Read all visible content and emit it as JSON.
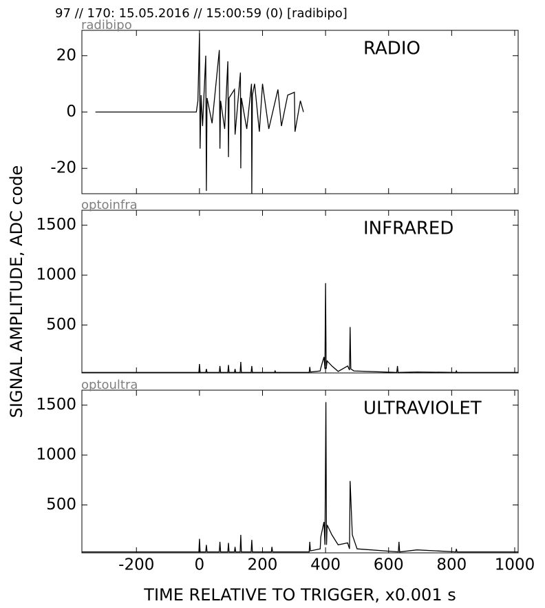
{
  "title": "97 // 170:   15.05.2016 // 15:00:59 (0)  [radibipo]",
  "xlabel": "TIME RELATIVE TO TRIGGER,   x0.001 s",
  "ylabel": "SIGNAL AMPLITUDE,  ADC code",
  "chart_data": [
    {
      "type": "line",
      "label": "radibipo",
      "annotation": "RADIO",
      "color": "#000000",
      "xlim": [
        -373,
        1011
      ],
      "xticks": [
        -200,
        0,
        200,
        400,
        600,
        800,
        1000
      ],
      "ylim": [
        -29,
        29
      ],
      "yticks": [
        -20,
        0,
        20
      ],
      "x": [
        -330,
        -10,
        -5,
        0,
        2,
        5,
        10,
        20,
        22,
        24,
        40,
        63,
        65,
        67,
        80,
        90,
        92,
        94,
        111,
        113,
        130,
        131,
        133,
        150,
        165,
        166,
        168,
        175,
        190,
        200,
        220,
        249,
        260,
        280,
        301,
        303,
        320,
        330
      ],
      "values": [
        0,
        0,
        4,
        28,
        -13,
        6,
        -5,
        20,
        -28,
        5,
        -4,
        22,
        -13,
        4,
        -6,
        18,
        -16,
        5,
        8,
        -8,
        14,
        -20,
        5,
        -6,
        10,
        -29,
        6,
        10,
        -7,
        10,
        -6,
        8,
        -5,
        6,
        7,
        -7,
        4,
        0
      ]
    },
    {
      "type": "line",
      "label": "optoinfra",
      "annotation": "INFRARED",
      "color": "#000000",
      "xlim": [
        -373,
        1011
      ],
      "xticks": [
        -200,
        0,
        200,
        400,
        600,
        800,
        1000
      ],
      "ylim": [
        20,
        1650
      ],
      "yticks": [
        500,
        1000,
        1500
      ],
      "x": [
        -373,
        -2,
        0,
        2,
        20,
        22,
        24,
        63,
        65,
        67,
        90,
        92,
        94,
        111,
        113,
        115,
        129,
        131,
        133,
        164,
        166,
        168,
        238,
        240,
        242,
        348,
        350,
        352,
        383,
        385,
        395,
        398,
        400,
        402,
        405,
        420,
        440,
        470,
        476,
        478,
        480,
        490,
        626,
        628,
        630,
        690,
        813,
        815,
        817,
        1011
      ],
      "values": [
        25,
        25,
        110,
        25,
        25,
        60,
        25,
        25,
        90,
        25,
        25,
        100,
        25,
        25,
        60,
        25,
        25,
        130,
        25,
        25,
        90,
        25,
        25,
        40,
        25,
        25,
        80,
        30,
        40,
        70,
        180,
        60,
        920,
        60,
        140,
        90,
        35,
        90,
        50,
        480,
        60,
        40,
        25,
        90,
        25,
        30,
        25,
        40,
        25,
        25
      ]
    },
    {
      "type": "line",
      "label": "optoultra",
      "annotation": "ULTRAVIOLET",
      "color": "#000000",
      "xlim": [
        -373,
        1011
      ],
      "xticks": [
        -200,
        0,
        200,
        400,
        600,
        800,
        1000
      ],
      "ylim": [
        20,
        1650
      ],
      "yticks": [
        500,
        1000,
        1500
      ],
      "x": [
        -373,
        -2,
        0,
        2,
        20,
        22,
        24,
        63,
        65,
        67,
        90,
        92,
        94,
        111,
        113,
        115,
        129,
        131,
        133,
        164,
        166,
        168,
        228,
        230,
        232,
        348,
        350,
        352,
        383,
        385,
        395,
        398,
        401,
        403,
        405,
        420,
        440,
        470,
        476,
        478,
        485,
        500,
        631,
        633,
        635,
        690,
        813,
        815,
        817,
        1011
      ],
      "values": [
        30,
        30,
        160,
        30,
        30,
        100,
        30,
        30,
        130,
        30,
        30,
        120,
        30,
        30,
        80,
        30,
        30,
        200,
        30,
        30,
        150,
        30,
        30,
        80,
        30,
        30,
        130,
        40,
        60,
        180,
        330,
        100,
        1530,
        100,
        300,
        200,
        100,
        120,
        60,
        740,
        200,
        60,
        30,
        130,
        30,
        50,
        30,
        60,
        30,
        30
      ]
    }
  ]
}
